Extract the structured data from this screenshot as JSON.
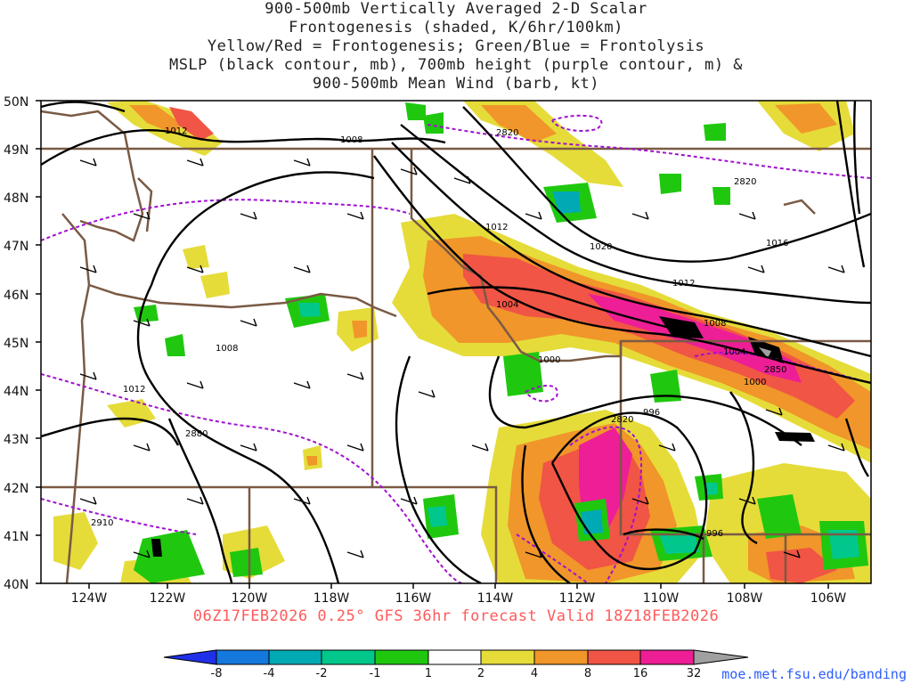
{
  "title": {
    "lines": [
      "900-500mb Vertically Averaged 2-D Scalar",
      "Frontogenesis (shaded, K/6hr/100km)",
      "Yellow/Red = Frontogenesis;  Green/Blue = Frontolysis",
      "MSLP (black contour, mb), 700mb height (purple contour, m) &",
      "900-500mb Mean Wind (barb, kt)"
    ]
  },
  "map": {
    "lat_labels": [
      "50N",
      "49N",
      "48N",
      "47N",
      "46N",
      "45N",
      "44N",
      "43N",
      "42N",
      "41N",
      "40N"
    ],
    "lon_labels": [
      "124W",
      "122W",
      "120W",
      "118W",
      "116W",
      "114W",
      "112W",
      "110W",
      "108W",
      "106W"
    ],
    "mslp_labels": [
      "1012",
      "1008",
      "1012",
      "1020",
      "1016",
      "1012",
      "1004",
      "1008",
      "1004",
      "1000",
      "1008",
      "1012",
      "996",
      "996",
      "1000"
    ],
    "height_labels": [
      "2820",
      "2820",
      "2850",
      "2820",
      "2880",
      "2910"
    ]
  },
  "colors": {
    "frontogenesis": [
      "#e5dc3a",
      "#f0962a",
      "#f05545",
      "#ee1e96",
      "#000000",
      "#a0a0a0"
    ],
    "frontolysis": [
      "#1fc80f",
      "#00c88c",
      "#00aab4",
      "#1478dc",
      "#2030e8"
    ],
    "mslp_contour": "#000000",
    "height_contour": "#a010d0",
    "borders": "#7a5a44"
  },
  "colorbar": {
    "labels": [
      "-8",
      "-4",
      "-2",
      "-1",
      "1",
      "2",
      "4",
      "8",
      "16",
      "32"
    ]
  },
  "valid_time": "06Z17FEB2026 0.25° GFS 36hr forecast Valid 18Z18FEB2026",
  "credit": "moe.met.fsu.edu/banding"
}
